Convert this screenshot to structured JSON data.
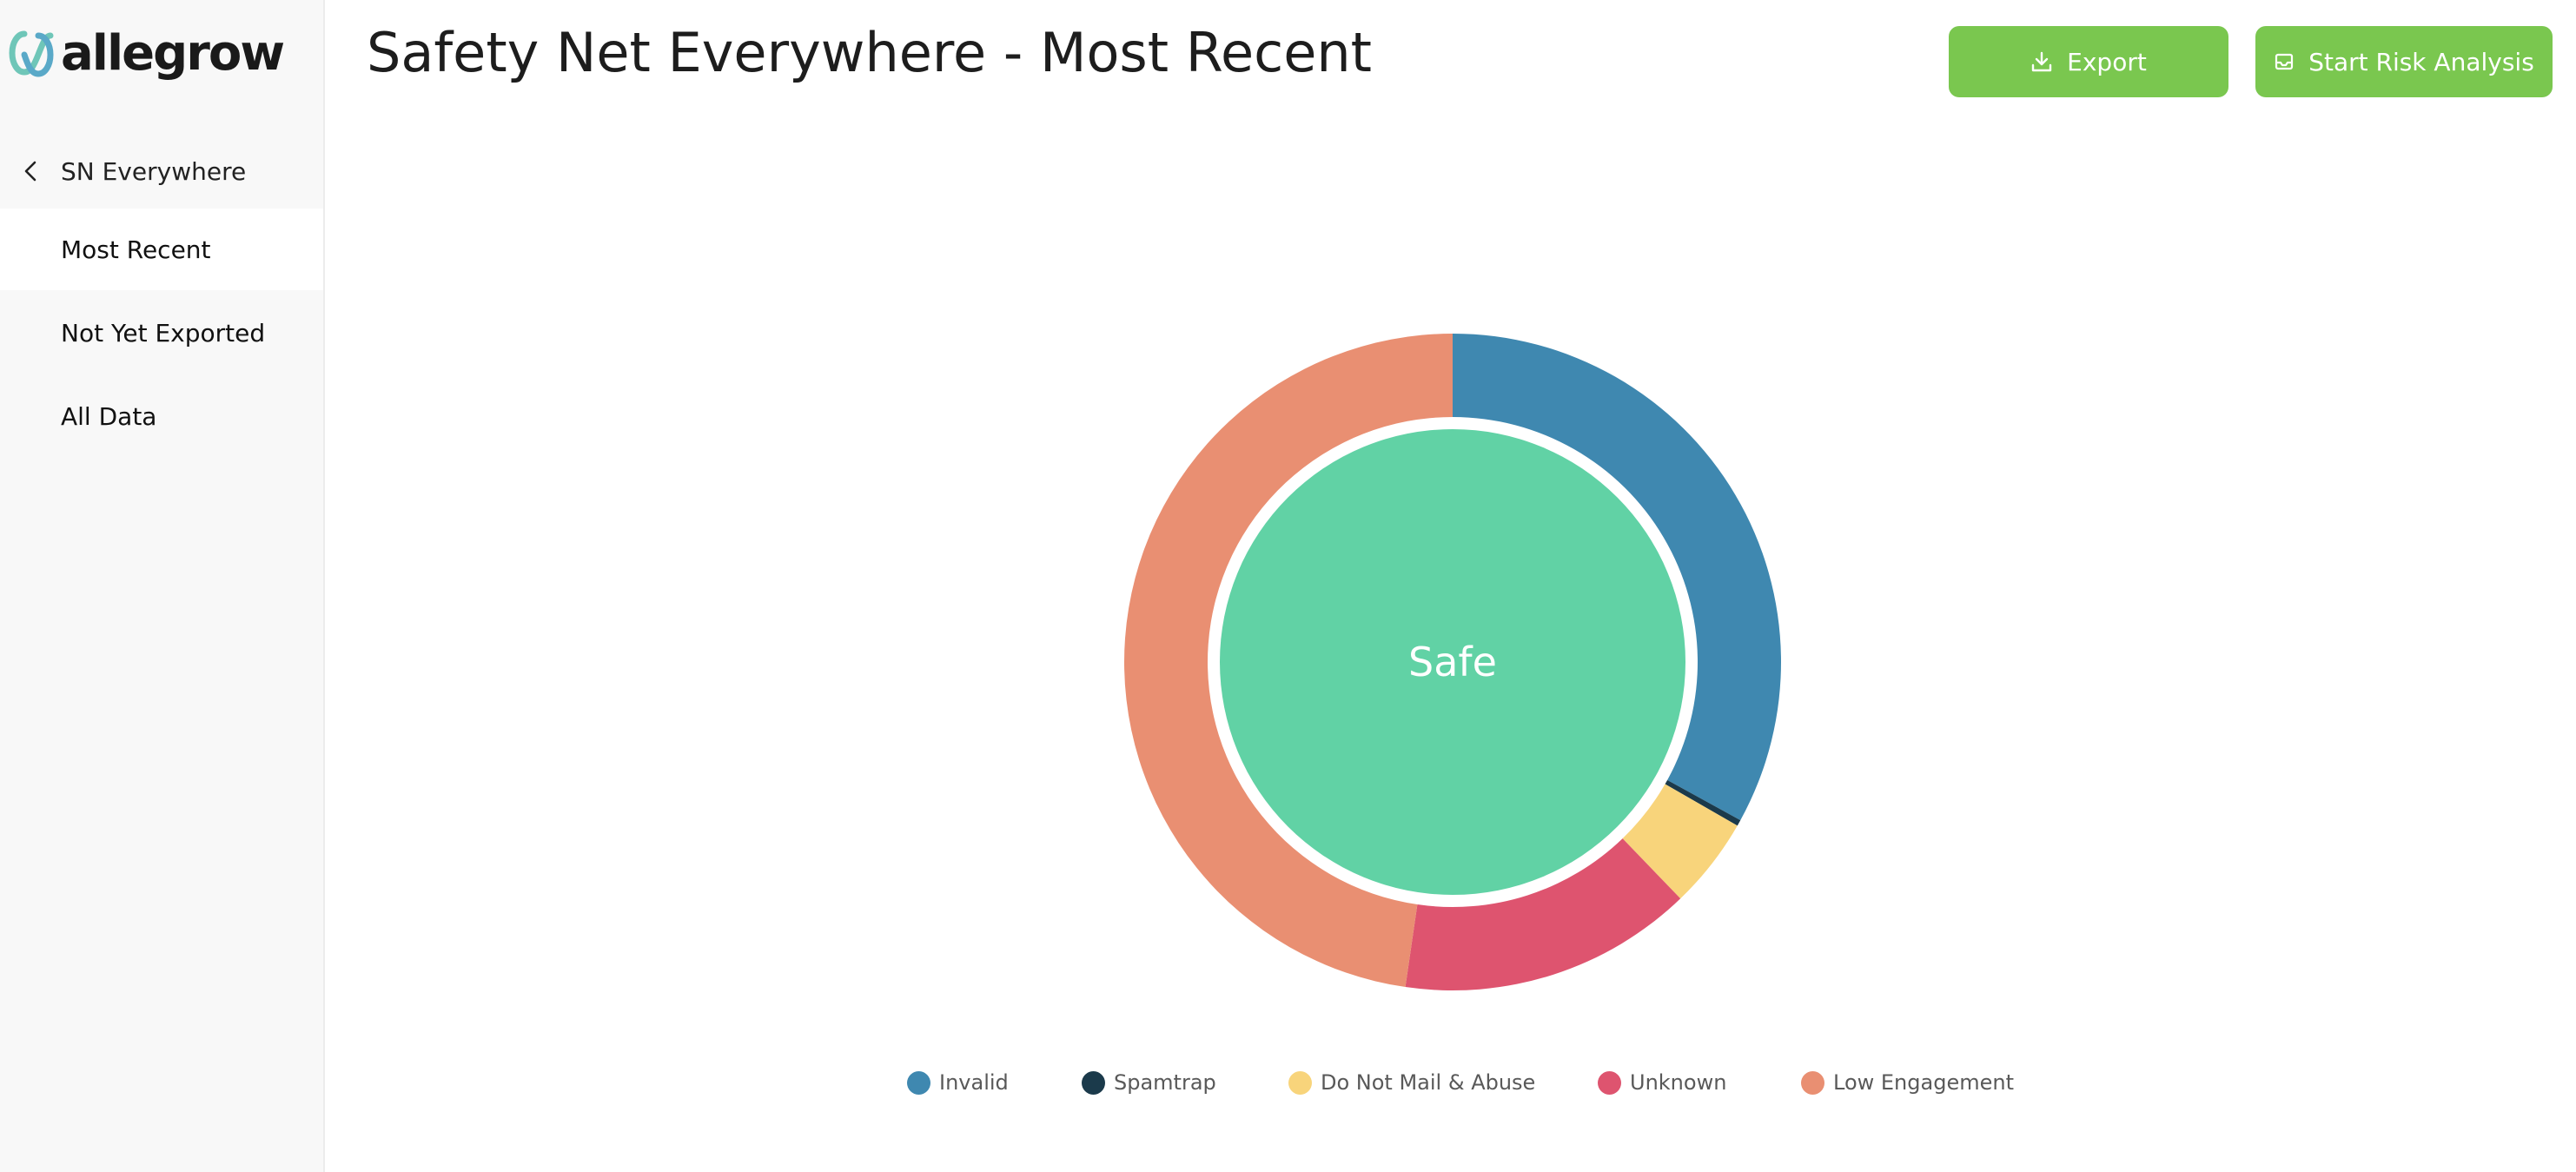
{
  "app": {
    "brand": "allegrow",
    "colors": {
      "accent": "#7ac74f",
      "sidebar_bg": "#f8f8f8"
    }
  },
  "sidebar": {
    "back_label": "SN Everywhere",
    "back_icon": "chevron-left-icon",
    "items": [
      {
        "label": "Most Recent"
      },
      {
        "label": "Not Yet Exported"
      },
      {
        "label": "All Data"
      }
    ]
  },
  "header": {
    "title": "Safety Net Everywhere - Most Recent",
    "export_label": "Export",
    "export_icon": "download-icon",
    "risk_label": "Start Risk Analysis",
    "risk_icon": "inbox-icon"
  },
  "chart_data": {
    "type": "pie",
    "center_label": "Safe",
    "inner": {
      "name": "Safe",
      "value": 100,
      "color": "#61d2a5"
    },
    "outer": [
      {
        "name": "Invalid",
        "value": 33.0,
        "color": "#3f88b0"
      },
      {
        "name": "Spamtrap",
        "value": 0.3,
        "color": "#1b3a4b"
      },
      {
        "name": "Do Not Mail & Abuse",
        "value": 4.5,
        "color": "#f8d47b"
      },
      {
        "name": "Unknown",
        "value": 14.5,
        "color": "#de546f"
      },
      {
        "name": "Low Engagement",
        "value": 47.7,
        "color": "#e98f72"
      }
    ],
    "legend": [
      {
        "label": "Invalid",
        "color": "#3f88b0"
      },
      {
        "label": "Spamtrap",
        "color": "#1b3a4b"
      },
      {
        "label": "Do Not Mail & Abuse",
        "color": "#f8d47b"
      },
      {
        "label": "Unknown",
        "color": "#de546f"
      },
      {
        "label": "Low Engagement",
        "color": "#e98f72"
      }
    ],
    "legend_position": "bottom"
  }
}
